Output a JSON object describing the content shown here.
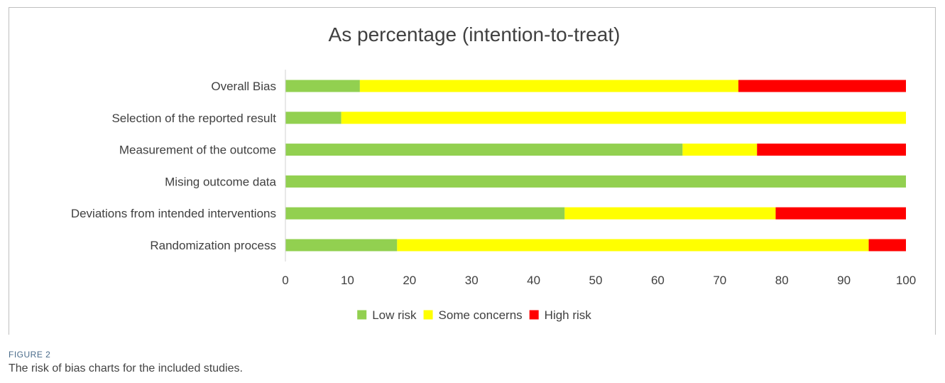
{
  "chart_data": {
    "type": "bar",
    "orientation": "horizontal",
    "stacked": true,
    "title": "As percentage (intention-to-treat)",
    "categories": [
      "Overall Bias",
      "Selection of the reported result",
      "Measurement of the outcome",
      "Mising outcome data",
      "Deviations from intended interventions",
      "Randomization process"
    ],
    "series": [
      {
        "name": "Low risk",
        "color": "#92d050",
        "values": [
          12,
          9,
          64,
          100,
          45,
          18
        ]
      },
      {
        "name": "Some concerns",
        "color": "#ffff00",
        "values": [
          61,
          91,
          12,
          0,
          34,
          76
        ]
      },
      {
        "name": "High risk",
        "color": "#ff0000",
        "values": [
          27,
          0,
          24,
          0,
          21,
          6
        ]
      }
    ],
    "xlim": [
      0,
      100
    ],
    "xticks": [
      "0",
      "10",
      "20",
      "30",
      "40",
      "50",
      "60",
      "70",
      "80",
      "90",
      "100"
    ],
    "grid": false,
    "legend_position": "bottom"
  },
  "caption": {
    "label": "FIGURE 2",
    "text": "The risk of bias charts for the included studies."
  }
}
